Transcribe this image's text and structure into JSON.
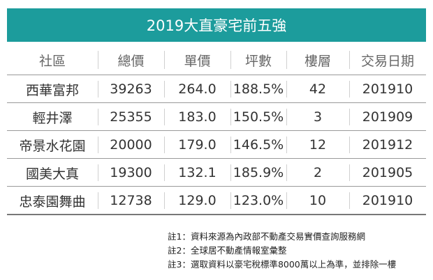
{
  "title": "2019大直豪宅前五強",
  "table": {
    "header": [
      "社區",
      "總價",
      "單價",
      "坪數",
      "樓層",
      "交易日期"
    ],
    "rows": [
      [
        "西華富邦",
        "39263",
        "264.0",
        "188.5%",
        "42",
        "201910"
      ],
      [
        "輕井澤",
        "25355",
        "183.0",
        "150.5%",
        "3",
        "201909"
      ],
      [
        "帝景水花園",
        "20000",
        "179.0",
        "146.5%",
        "12",
        "201912"
      ],
      [
        "國美大真",
        "19300",
        "132.1",
        "185.9%",
        "2",
        "201905"
      ],
      [
        "忠泰園舞曲",
        "12738",
        "129.0",
        "123.0%",
        "10",
        "201910"
      ]
    ]
  },
  "notes": [
    "註1：資料來源為內政部不動產交易實價查詢服務網",
    "註2：全球居不動產情報室彙整",
    "註3：選取資料以豪宅稅標準8000萬以上為準，並排除一樓"
  ]
}
